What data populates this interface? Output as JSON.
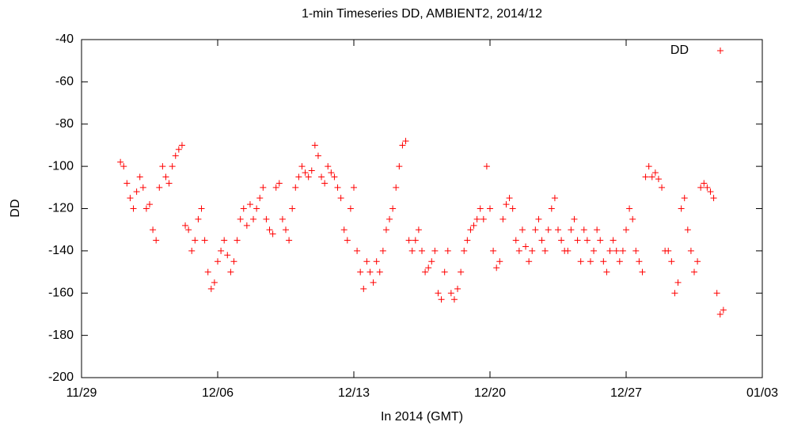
{
  "chart_data": {
    "type": "scatter",
    "title": "1-min Timeseries DD, AMBIENT2, 2014/12",
    "x_label": "In 2014 (GMT)",
    "y_label": "DD",
    "xlim": [
      "2014-11-29 00:00",
      "2015-01-03 00:00"
    ],
    "xticks": [
      {
        "value": "2014-11-29 00:00",
        "label": "11/29"
      },
      {
        "value": "2014-12-06 00:00",
        "label": "12/06"
      },
      {
        "value": "2014-12-13 00:00",
        "label": "12/13"
      },
      {
        "value": "2014-12-20 00:00",
        "label": "12/20"
      },
      {
        "value": "2014-12-27 00:00",
        "label": "12/27"
      },
      {
        "value": "2015-01-03 00:00",
        "label": "01/03"
      }
    ],
    "ylim": [
      -200,
      -40
    ],
    "yticks": [
      -200,
      -180,
      -160,
      -140,
      -120,
      -100,
      -80,
      -60,
      -40
    ],
    "legend": "top-right",
    "series": [
      {
        "name": "DD",
        "color": "#ff0000",
        "x": [
          "2014-12-01 00:00",
          "2014-12-01 04:00",
          "2014-12-01 08:00",
          "2014-12-01 12:00",
          "2014-12-01 16:00",
          "2014-12-01 20:00",
          "2014-12-02 00:00",
          "2014-12-02 04:00",
          "2014-12-02 08:00",
          "2014-12-02 12:00",
          "2014-12-02 16:00",
          "2014-12-02 20:00",
          "2014-12-03 00:00",
          "2014-12-03 04:00",
          "2014-12-03 08:00",
          "2014-12-03 12:00",
          "2014-12-03 16:00",
          "2014-12-03 20:00",
          "2014-12-04 00:00",
          "2014-12-04 04:00",
          "2014-12-04 08:00",
          "2014-12-04 12:00",
          "2014-12-04 16:00",
          "2014-12-04 20:00",
          "2014-12-05 00:00",
          "2014-12-05 04:00",
          "2014-12-05 08:00",
          "2014-12-05 12:00",
          "2014-12-05 16:00",
          "2014-12-05 20:00",
          "2014-12-06 00:00",
          "2014-12-06 04:00",
          "2014-12-06 08:00",
          "2014-12-06 12:00",
          "2014-12-06 16:00",
          "2014-12-06 20:00",
          "2014-12-07 00:00",
          "2014-12-07 04:00",
          "2014-12-07 08:00",
          "2014-12-07 12:00",
          "2014-12-07 16:00",
          "2014-12-07 20:00",
          "2014-12-08 00:00",
          "2014-12-08 04:00",
          "2014-12-08 08:00",
          "2014-12-08 12:00",
          "2014-12-08 16:00",
          "2014-12-08 20:00",
          "2014-12-09 00:00",
          "2014-12-09 04:00",
          "2014-12-09 08:00",
          "2014-12-09 12:00",
          "2014-12-09 16:00",
          "2014-12-09 20:00",
          "2014-12-10 00:00",
          "2014-12-10 04:00",
          "2014-12-10 08:00",
          "2014-12-10 12:00",
          "2014-12-10 16:00",
          "2014-12-10 20:00",
          "2014-12-11 00:00",
          "2014-12-11 04:00",
          "2014-12-11 08:00",
          "2014-12-11 12:00",
          "2014-12-11 16:00",
          "2014-12-11 20:00",
          "2014-12-12 00:00",
          "2014-12-12 04:00",
          "2014-12-12 08:00",
          "2014-12-12 12:00",
          "2014-12-12 16:00",
          "2014-12-12 20:00",
          "2014-12-13 00:00",
          "2014-12-13 04:00",
          "2014-12-13 08:00",
          "2014-12-13 12:00",
          "2014-12-13 16:00",
          "2014-12-13 20:00",
          "2014-12-14 00:00",
          "2014-12-14 04:00",
          "2014-12-14 08:00",
          "2014-12-14 12:00",
          "2014-12-14 16:00",
          "2014-12-14 20:00",
          "2014-12-15 00:00",
          "2014-12-15 04:00",
          "2014-12-15 08:00",
          "2014-12-15 12:00",
          "2014-12-15 16:00",
          "2014-12-15 20:00",
          "2014-12-16 00:00",
          "2014-12-16 04:00",
          "2014-12-16 08:00",
          "2014-12-16 12:00",
          "2014-12-16 16:00",
          "2014-12-16 20:00",
          "2014-12-17 00:00",
          "2014-12-17 04:00",
          "2014-12-17 08:00",
          "2014-12-17 12:00",
          "2014-12-17 16:00",
          "2014-12-17 20:00",
          "2014-12-18 00:00",
          "2014-12-18 04:00",
          "2014-12-18 08:00",
          "2014-12-18 12:00",
          "2014-12-18 16:00",
          "2014-12-18 20:00",
          "2014-12-19 00:00",
          "2014-12-19 04:00",
          "2014-12-19 08:00",
          "2014-12-19 12:00",
          "2014-12-19 16:00",
          "2014-12-19 20:00",
          "2014-12-20 00:00",
          "2014-12-20 04:00",
          "2014-12-20 08:00",
          "2014-12-20 12:00",
          "2014-12-20 16:00",
          "2014-12-20 20:00",
          "2014-12-21 00:00",
          "2014-12-21 04:00",
          "2014-12-21 08:00",
          "2014-12-21 12:00",
          "2014-12-21 16:00",
          "2014-12-21 20:00",
          "2014-12-22 00:00",
          "2014-12-22 04:00",
          "2014-12-22 08:00",
          "2014-12-22 12:00",
          "2014-12-22 16:00",
          "2014-12-22 20:00",
          "2014-12-23 00:00",
          "2014-12-23 04:00",
          "2014-12-23 08:00",
          "2014-12-23 12:00",
          "2014-12-23 16:00",
          "2014-12-23 20:00",
          "2014-12-24 00:00",
          "2014-12-24 04:00",
          "2014-12-24 08:00",
          "2014-12-24 12:00",
          "2014-12-24 16:00",
          "2014-12-24 20:00",
          "2014-12-25 00:00",
          "2014-12-25 04:00",
          "2014-12-25 08:00",
          "2014-12-25 12:00",
          "2014-12-25 16:00",
          "2014-12-25 20:00",
          "2014-12-26 00:00",
          "2014-12-26 04:00",
          "2014-12-26 08:00",
          "2014-12-26 12:00",
          "2014-12-26 16:00",
          "2014-12-26 20:00",
          "2014-12-27 00:00",
          "2014-12-27 04:00",
          "2014-12-27 08:00",
          "2014-12-27 12:00",
          "2014-12-27 16:00",
          "2014-12-27 20:00",
          "2014-12-28 00:00",
          "2014-12-28 04:00",
          "2014-12-28 08:00",
          "2014-12-28 12:00",
          "2014-12-28 16:00",
          "2014-12-28 20:00",
          "2014-12-29 00:00",
          "2014-12-29 04:00",
          "2014-12-29 08:00",
          "2014-12-29 12:00",
          "2014-12-29 16:00",
          "2014-12-29 20:00",
          "2014-12-30 00:00",
          "2014-12-30 04:00",
          "2014-12-30 08:00",
          "2014-12-30 12:00",
          "2014-12-30 16:00",
          "2014-12-30 20:00",
          "2014-12-31 00:00",
          "2014-12-31 04:00",
          "2014-12-31 08:00",
          "2014-12-31 12:00",
          "2014-12-31 16:00",
          "2014-12-31 20:00",
          "2015-01-01 00:00"
        ],
        "values": [
          -98,
          -100,
          -108,
          -115,
          -120,
          -112,
          -105,
          -110,
          -120,
          -118,
          -130,
          -135,
          -110,
          -100,
          -105,
          -108,
          -100,
          -95,
          -92,
          -90,
          -128,
          -130,
          -140,
          -135,
          -125,
          -120,
          -135,
          -150,
          -158,
          -155,
          -145,
          -140,
          -135,
          -142,
          -150,
          -145,
          -135,
          -125,
          -120,
          -128,
          -118,
          -125,
          -120,
          -115,
          -110,
          -125,
          -130,
          -132,
          -110,
          -108,
          -125,
          -130,
          -135,
          -120,
          -110,
          -105,
          -100,
          -103,
          -105,
          -102,
          -90,
          -95,
          -105,
          -108,
          -100,
          -103,
          -105,
          -110,
          -115,
          -130,
          -135,
          -120,
          -110,
          -140,
          -150,
          -158,
          -145,
          -150,
          -155,
          -145,
          -150,
          -140,
          -130,
          -125,
          -120,
          -110,
          -100,
          -90,
          -88,
          -135,
          -140,
          -135,
          -130,
          -140,
          -150,
          -148,
          -145,
          -140,
          -160,
          -163,
          -150,
          -140,
          -160,
          -163,
          -158,
          -150,
          -140,
          -135,
          -130,
          -128,
          -125,
          -120,
          -125,
          -100,
          -120,
          -140,
          -148,
          -145,
          -125,
          -118,
          -115,
          -120,
          -135,
          -140,
          -130,
          -138,
          -145,
          -140,
          -130,
          -125,
          -135,
          -140,
          -130,
          -120,
          -115,
          -130,
          -135,
          -140,
          -140,
          -130,
          -125,
          -135,
          -145,
          -130,
          -135,
          -145,
          -140,
          -130,
          -135,
          -145,
          -150,
          -140,
          -135,
          -140,
          -145,
          -140,
          -130,
          -120,
          -125,
          -140,
          -145,
          -150,
          -105,
          -100,
          -105,
          -103,
          -106,
          -110,
          -140,
          -140,
          -145,
          -160,
          -155,
          -120,
          -115,
          -130,
          -140,
          -150,
          -145,
          -110,
          -108,
          -110,
          -112,
          -115,
          -160,
          -170,
          -168
        ]
      }
    ]
  }
}
